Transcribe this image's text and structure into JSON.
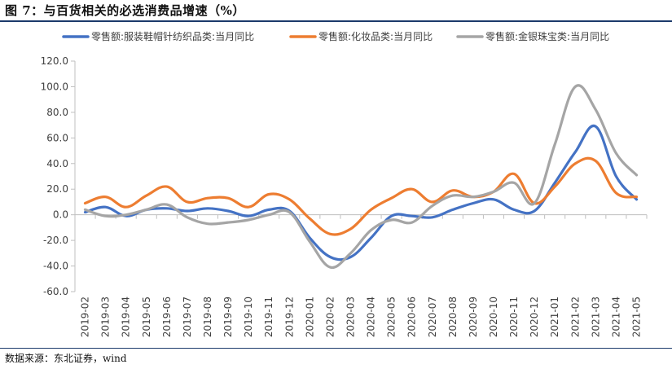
{
  "title": "图 7：与百货相关的必选消费品增速（%）",
  "source": "数据来源：东北证券，wind",
  "chart_data": {
    "type": "line",
    "x": [
      "2019-02",
      "2019-03",
      "2019-04",
      "2019-05",
      "2019-06",
      "2019-07",
      "2019-08",
      "2019-09",
      "2019-10",
      "2019-11",
      "2019-12",
      "2020-01",
      "2020-02",
      "2020-03",
      "2020-04",
      "2020-05",
      "2020-06",
      "2020-07",
      "2020-08",
      "2020-09",
      "2020-10",
      "2020-11",
      "2020-12",
      "2021-01",
      "2021-02",
      "2021-03",
      "2021-04",
      "2021-05"
    ],
    "ylim": [
      -60,
      120
    ],
    "yticks": [
      "120.0",
      "100.0",
      "80.0",
      "60.0",
      "40.0",
      "20.0",
      "0.0",
      "-20.0",
      "-40.0",
      "-60.0"
    ],
    "legend_position": "top",
    "grid": false,
    "series": [
      {
        "name": "零售额:服装鞋帽针纺织品类:当月同比",
        "color": "#4472C4",
        "values": [
          2,
          6,
          -1,
          4,
          5,
          3,
          5,
          3,
          -1,
          4,
          3,
          -18,
          -33,
          -33,
          -18,
          -1,
          -1,
          -2,
          4,
          9,
          12,
          4,
          3,
          25,
          49,
          69,
          30,
          12
        ]
      },
      {
        "name": "零售额:化妆品类:当月同比",
        "color": "#ED7D31",
        "values": [
          9,
          14,
          6,
          15,
          22,
          10,
          13,
          13,
          6,
          16,
          12,
          -3,
          -15,
          -11,
          4,
          13,
          20,
          10,
          19,
          14,
          18,
          32,
          9,
          22,
          40,
          42,
          17,
          14
        ]
      },
      {
        "name": "零售额:金银珠宝类:当月同比",
        "color": "#A5A5A5",
        "values": [
          4,
          -1,
          0,
          4,
          8,
          -2,
          -7,
          -6,
          -4,
          0,
          2,
          -21,
          -41,
          -30,
          -12,
          -4,
          -6,
          7,
          15,
          14,
          18,
          25,
          9,
          55,
          100,
          82,
          48,
          31
        ]
      }
    ]
  }
}
